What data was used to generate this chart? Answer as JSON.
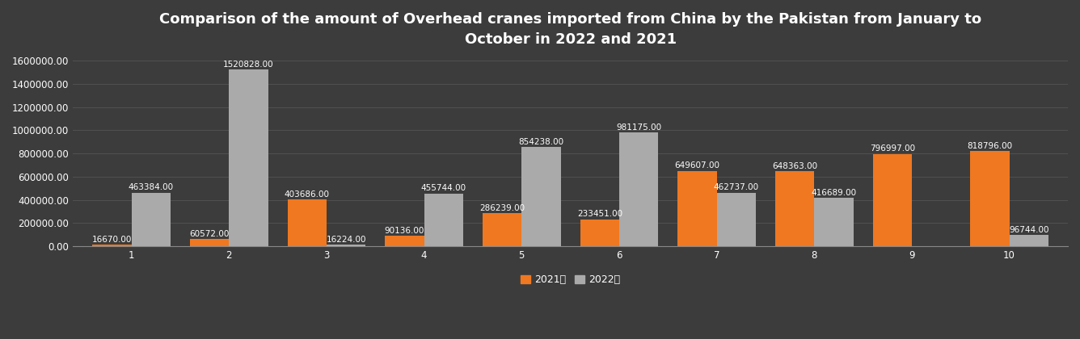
{
  "title": "Comparison of the amount of Overhead cranes imported from China by the Pakistan from January to\nOctober in 2022 and 2021",
  "months": [
    1,
    2,
    3,
    4,
    5,
    6,
    7,
    8,
    9,
    10
  ],
  "values_2021": [
    16670,
    60572,
    403686,
    90136,
    286239,
    233451,
    649607,
    648363,
    796997,
    818796
  ],
  "values_2022": [
    463384,
    1520828,
    16224,
    455744,
    854238,
    981175,
    462737,
    416689,
    0,
    96744
  ],
  "bar_color_2021": "#f07820",
  "bar_color_2022": "#aaaaaa",
  "background_color": "#3c3c3c",
  "text_color": "#ffffff",
  "legend_labels": [
    "2021年",
    "2022年"
  ],
  "ylim": [
    0,
    1650000
  ],
  "yticks": [
    0,
    200000,
    400000,
    600000,
    800000,
    1000000,
    1200000,
    1400000,
    1600000
  ],
  "bar_width": 0.4,
  "title_fontsize": 13,
  "label_fontsize": 7.5,
  "tick_fontsize": 8.5,
  "grid_color": "#555555",
  "spine_color": "#888888"
}
